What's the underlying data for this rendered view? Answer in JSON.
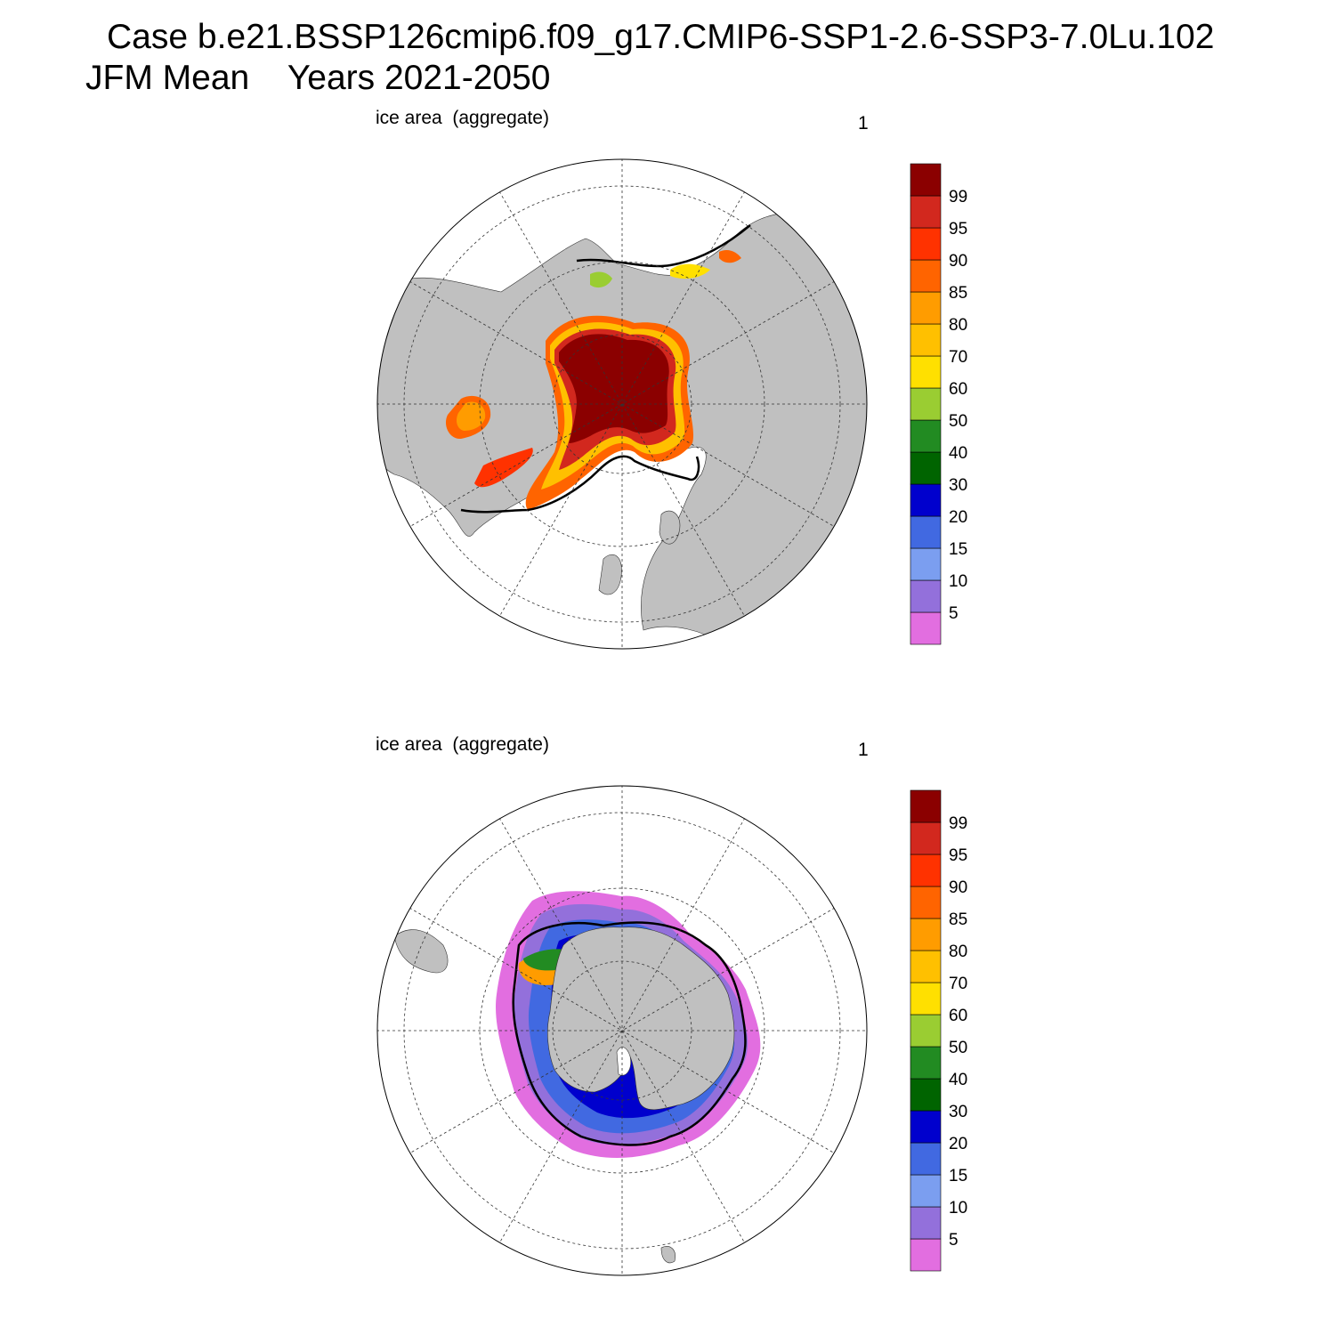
{
  "title_line1": "Case b.e21.BSSP126cmip6.f09_g17.CMIP6-SSP1-2.6-SSP3-7.0Lu.102",
  "title_line2": "JFM Mean    Years 2021-2050",
  "panels": [
    {
      "id": "north",
      "hemisphere": "Northern Hemisphere polar stereographic",
      "variable_label": "ice area  (aggregate)",
      "units_label": "1"
    },
    {
      "id": "south",
      "hemisphere": "Southern Hemisphere polar stereographic",
      "variable_label": "ice area  (aggregate)",
      "units_label": "1"
    }
  ],
  "colorbar": {
    "levels": [
      "5",
      "10",
      "15",
      "20",
      "30",
      "40",
      "50",
      "60",
      "70",
      "80",
      "85",
      "90",
      "95",
      "99"
    ],
    "colors": [
      "#e26ee0",
      "#9370db",
      "#7b9ef0",
      "#4169e1",
      "#0000cd",
      "#006400",
      "#228b22",
      "#9acd32",
      "#ffe000",
      "#ffc000",
      "#ff9c00",
      "#ff6400",
      "#ff3200",
      "#d2281e",
      "#8b0000"
    ]
  },
  "map_style": {
    "land_color": "#c0c0c0",
    "ocean_color": "#ffffff",
    "ice_edge_contour_color": "#000000",
    "graticule": "dashed"
  }
}
